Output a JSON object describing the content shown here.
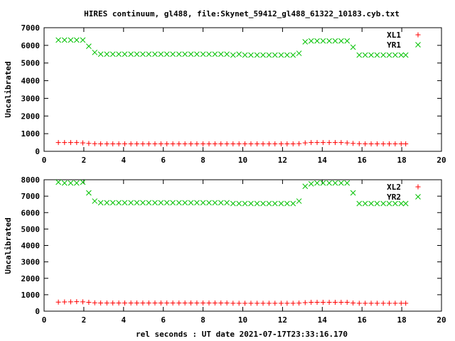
{
  "chart_data": [
    {
      "type": "scatter",
      "title": "HIRES continuum, gl488, file:Skynet_59412_gl488_61322_10183.cyb.txt",
      "xlabel": "",
      "ylabel": "Uncalibrated",
      "xlim": [
        0,
        20
      ],
      "ylim": [
        0,
        7000
      ],
      "xticks": [
        "0",
        "2",
        "4",
        "6",
        "8",
        "10",
        "12",
        "14",
        "16",
        "18",
        "20"
      ],
      "yticks": [
        "0",
        "1000",
        "2000",
        "3000",
        "4000",
        "5000",
        "6000",
        "7000"
      ],
      "grid": false,
      "legend_position": "top-right",
      "x": [
        0.72,
        1.03,
        1.34,
        1.64,
        1.95,
        2.25,
        2.55,
        2.85,
        3.16,
        3.46,
        3.76,
        4.06,
        4.37,
        4.67,
        4.97,
        5.27,
        5.58,
        5.88,
        6.18,
        6.48,
        6.79,
        7.09,
        7.39,
        7.69,
        8.0,
        8.3,
        8.6,
        8.9,
        9.2,
        9.51,
        9.81,
        10.11,
        10.41,
        10.72,
        11.02,
        11.32,
        11.62,
        11.93,
        12.23,
        12.53,
        12.83,
        13.14,
        13.44,
        13.74,
        14.04,
        14.35,
        14.65,
        14.95,
        15.25,
        15.55,
        15.86,
        16.16,
        16.46,
        16.76,
        17.07,
        17.37,
        17.67,
        17.97,
        18.2
      ],
      "series": [
        {
          "name": "XL1",
          "color": "#ff0000",
          "marker": "+",
          "values": [
            500,
            500,
            500,
            500,
            480,
            450,
            430,
            420,
            420,
            420,
            420,
            420,
            420,
            420,
            420,
            420,
            420,
            420,
            420,
            420,
            420,
            420,
            420,
            420,
            420,
            420,
            420,
            420,
            420,
            420,
            420,
            420,
            420,
            420,
            420,
            420,
            420,
            420,
            420,
            420,
            430,
            480,
            500,
            500,
            500,
            500,
            500,
            500,
            480,
            450,
            430,
            420,
            420,
            420,
            420,
            420,
            420,
            420,
            420
          ]
        },
        {
          "name": "YR1",
          "color": "#00c000",
          "marker": "x",
          "values": [
            6300,
            6300,
            6300,
            6300,
            6300,
            5950,
            5600,
            5500,
            5500,
            5500,
            5500,
            5500,
            5500,
            5500,
            5500,
            5500,
            5500,
            5500,
            5500,
            5500,
            5500,
            5500,
            5500,
            5500,
            5500,
            5500,
            5500,
            5500,
            5500,
            5450,
            5500,
            5450,
            5450,
            5450,
            5450,
            5450,
            5450,
            5450,
            5450,
            5450,
            5550,
            6200,
            6250,
            6250,
            6250,
            6250,
            6250,
            6250,
            6250,
            5900,
            5450,
            5450,
            5450,
            5450,
            5450,
            5450,
            5450,
            5450,
            5450
          ]
        }
      ]
    },
    {
      "type": "scatter",
      "title": "",
      "xlabel": "rel seconds : UT date 2021-07-17T23:33:16.170",
      "ylabel": "Uncalibrated",
      "xlim": [
        0,
        20
      ],
      "ylim": [
        0,
        8000
      ],
      "xticks": [
        "0",
        "2",
        "4",
        "6",
        "8",
        "10",
        "12",
        "14",
        "16",
        "18",
        "20"
      ],
      "yticks": [
        "0",
        "1000",
        "2000",
        "3000",
        "4000",
        "5000",
        "6000",
        "7000",
        "8000"
      ],
      "grid": false,
      "legend_position": "top-right",
      "x": [
        0.72,
        1.03,
        1.34,
        1.64,
        1.95,
        2.25,
        2.55,
        2.85,
        3.16,
        3.46,
        3.76,
        4.06,
        4.37,
        4.67,
        4.97,
        5.27,
        5.58,
        5.88,
        6.18,
        6.48,
        6.79,
        7.09,
        7.39,
        7.69,
        8.0,
        8.3,
        8.6,
        8.9,
        9.2,
        9.51,
        9.81,
        10.11,
        10.41,
        10.72,
        11.02,
        11.32,
        11.62,
        11.93,
        12.23,
        12.53,
        12.83,
        13.14,
        13.44,
        13.74,
        14.04,
        14.35,
        14.65,
        14.95,
        15.25,
        15.55,
        15.86,
        16.16,
        16.46,
        16.76,
        17.07,
        17.37,
        17.67,
        17.97,
        18.2
      ],
      "series": [
        {
          "name": "XL2",
          "color": "#ff0000",
          "marker": "+",
          "values": [
            550,
            560,
            570,
            580,
            570,
            540,
            510,
            500,
            500,
            500,
            500,
            500,
            500,
            500,
            500,
            500,
            500,
            500,
            500,
            500,
            500,
            500,
            500,
            500,
            500,
            500,
            500,
            500,
            500,
            480,
            480,
            480,
            480,
            480,
            480,
            480,
            480,
            480,
            480,
            480,
            490,
            520,
            540,
            540,
            540,
            540,
            540,
            540,
            540,
            500,
            480,
            480,
            480,
            480,
            480,
            480,
            480,
            480,
            480
          ]
        },
        {
          "name": "YR2",
          "color": "#00c000",
          "marker": "x",
          "values": [
            7850,
            7800,
            7800,
            7800,
            7850,
            7200,
            6700,
            6600,
            6600,
            6600,
            6600,
            6600,
            6600,
            6600,
            6600,
            6600,
            6600,
            6600,
            6600,
            6600,
            6600,
            6600,
            6600,
            6600,
            6600,
            6600,
            6600,
            6600,
            6600,
            6550,
            6550,
            6550,
            6550,
            6550,
            6550,
            6550,
            6550,
            6550,
            6550,
            6550,
            6700,
            7600,
            7750,
            7800,
            7800,
            7800,
            7800,
            7800,
            7800,
            7200,
            6550,
            6550,
            6550,
            6550,
            6550,
            6550,
            6550,
            6550,
            6550
          ]
        }
      ]
    }
  ]
}
